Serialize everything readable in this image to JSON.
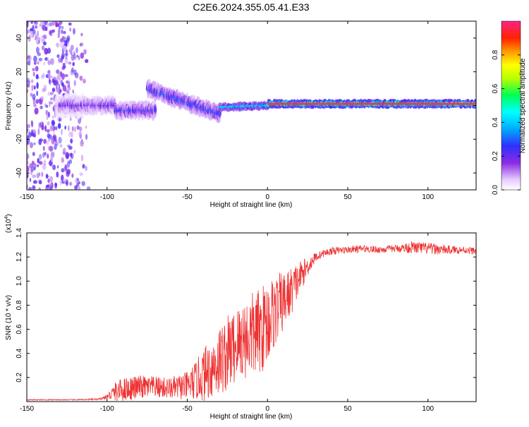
{
  "title": "C2E6.2024.355.05.41.E33",
  "chart_data": [
    {
      "type": "heatmap",
      "xlabel": "Height of straight line (km)",
      "ylabel": "Frequency (Hz)",
      "xlim": [
        -150,
        130
      ],
      "ylim": [
        -50,
        50
      ],
      "xticks": [
        -150,
        -100,
        -50,
        0,
        50,
        100
      ],
      "yticks": [
        -40,
        -20,
        0,
        20,
        40
      ],
      "colorbar": {
        "label": "Normalized spectral amplitude",
        "range": [
          0.0,
          1.0
        ],
        "ticks": [
          0.0,
          0.2,
          0.4,
          0.6,
          0.8
        ]
      },
      "traces": [
        {
          "x_start": -132,
          "x_end": -115,
          "freq": 0,
          "spread": 8,
          "amplitude": 0.1
        },
        {
          "x_start": -130,
          "x_end": -95,
          "freq": 0,
          "spread": 6,
          "amplitude": 0.25
        },
        {
          "x_start": -95,
          "x_end": -70,
          "freq": -3,
          "spread": 6,
          "amplitude": 0.3
        },
        {
          "x_start": -75,
          "x_end": -30,
          "freq_start": 10,
          "freq_end": -5,
          "spread": 6,
          "amplitude": 0.35
        },
        {
          "x_start": -30,
          "x_end": 0,
          "freq_start": -1,
          "freq_end": 0,
          "spread": 3,
          "amplitude": 0.55
        },
        {
          "x_start": 0,
          "x_end": 130,
          "freq": 1,
          "spread": 3,
          "amplitude": 0.95
        }
      ],
      "scatter_region": {
        "x_start": -150,
        "x_end": -110,
        "freq_range": [
          -50,
          50
        ],
        "amplitude": 0.15
      }
    },
    {
      "type": "line",
      "xlabel": "Height of straight line (km)",
      "ylabel": "SNR (10 * v/v)",
      "exponent_label": "(x10",
      "exponent_power": "4",
      "exponent_close": ")",
      "xlim": [
        -150,
        130
      ],
      "ylim": [
        0.0,
        1.4
      ],
      "xticks": [
        -150,
        -100,
        -50,
        0,
        50,
        100
      ],
      "yticks": [
        0.2,
        0.4,
        0.6,
        0.8,
        1.0,
        1.2,
        1.4
      ],
      "series": [
        {
          "color": "#ee3333",
          "envelope": {
            "x": [
              -150,
              -120,
              -105,
              -100,
              -95,
              -90,
              -80,
              -70,
              -60,
              -50,
              -45,
              -40,
              -35,
              -30,
              -25,
              -20,
              -15,
              -10,
              -5,
              0,
              5,
              10,
              15,
              20,
              25,
              30,
              35,
              40,
              50,
              60,
              70,
              80,
              90,
              100,
              110,
              120,
              130
            ],
            "y_mean": [
              0.015,
              0.015,
              0.02,
              0.04,
              0.08,
              0.1,
              0.12,
              0.12,
              0.11,
              0.13,
              0.17,
              0.22,
              0.28,
              0.34,
              0.4,
              0.46,
              0.52,
              0.55,
              0.58,
              0.66,
              0.76,
              0.83,
              0.92,
              1.03,
              1.12,
              1.2,
              1.23,
              1.25,
              1.26,
              1.27,
              1.26,
              1.27,
              1.28,
              1.27,
              1.26,
              1.26,
              1.25
            ],
            "y_noise": [
              0.004,
              0.004,
              0.006,
              0.02,
              0.08,
              0.1,
              0.1,
              0.09,
              0.09,
              0.12,
              0.16,
              0.22,
              0.26,
              0.3,
              0.32,
              0.32,
              0.34,
              0.36,
              0.36,
              0.36,
              0.3,
              0.25,
              0.2,
              0.14,
              0.08,
              0.04,
              0.03,
              0.03,
              0.03,
              0.03,
              0.03,
              0.03,
              0.05,
              0.05,
              0.04,
              0.03,
              0.03
            ]
          }
        }
      ]
    }
  ]
}
